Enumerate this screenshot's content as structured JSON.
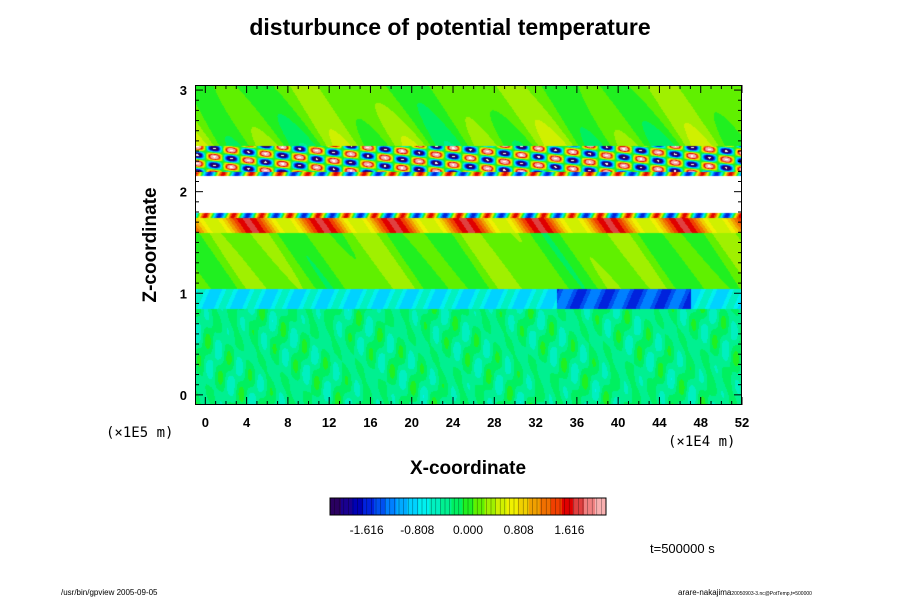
{
  "chart_data": {
    "type": "heatmap",
    "title": "disturbunce of potential temperature",
    "xlabel": "X-coordinate",
    "ylabel": "Z-coordinate",
    "x_ticks": [
      0,
      4,
      8,
      12,
      16,
      20,
      24,
      28,
      32,
      36,
      40,
      44,
      48,
      52
    ],
    "x_range": [
      -1,
      52
    ],
    "x_units": "(×1E4 m)",
    "y_ticks": [
      0,
      1,
      2,
      3
    ],
    "y_range": [
      -0.1,
      3.05
    ],
    "y_units": "(×1E5 m)",
    "colorbar": {
      "ticks": [
        "-1.616",
        "-0.808",
        "0.000",
        "0.808",
        "1.616"
      ],
      "colors": [
        "#2a0060",
        "#1a0090",
        "#0000b4",
        "#0022dd",
        "#0050f0",
        "#0080ff",
        "#00aaff",
        "#00d2ff",
        "#00f0f0",
        "#00f0c0",
        "#00f090",
        "#00f060",
        "#20f020",
        "#60f000",
        "#a0f000",
        "#d0f000",
        "#f0f000",
        "#f0d000",
        "#f0a000",
        "#f07000",
        "#f04000",
        "#e00000",
        "#e04040",
        "#f08080",
        "#f8b0b0"
      ],
      "range": [
        -2.2,
        2.2
      ]
    },
    "field_bands": [
      {
        "z_from": 2.45,
        "z_to": 3.05,
        "level": 0.15,
        "note": "weak positive with oscillating ripples"
      },
      {
        "z_from": 2.2,
        "z_to": 2.45,
        "level": 0.0,
        "note": "strong alternating wave cells"
      },
      {
        "z_from": 1.75,
        "z_to": 2.2,
        "level": 3.0,
        "note": "saturated white layer"
      },
      {
        "z_from": 1.6,
        "z_to": 1.75,
        "level": 1.3,
        "note": "warm orange-red edge"
      },
      {
        "z_from": 1.05,
        "z_to": 1.6,
        "level": 0.1,
        "note": "green"
      },
      {
        "z_from": 0.85,
        "z_to": 1.05,
        "level": -0.75,
        "note": "cool blue band, darkest near x=36-46"
      },
      {
        "z_from": -0.1,
        "z_to": 0.85,
        "level": -0.3,
        "note": "cyan"
      }
    ]
  },
  "time_label": "t=500000 s",
  "footer_left": "/usr/bin/gpview 2005-09-05",
  "footer_right_main": "arare-nakajima",
  "footer_right_small": "20050903-3.nc@PotTemp,t=500000"
}
